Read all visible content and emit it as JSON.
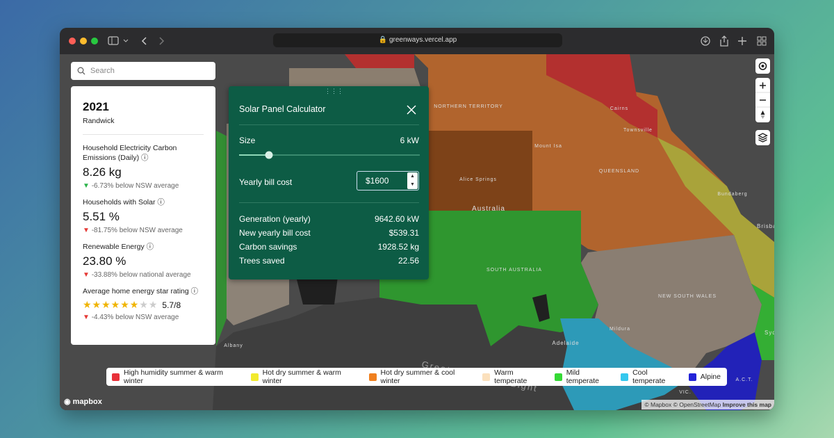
{
  "browser": {
    "url": "greenways.vercel.app"
  },
  "search": {
    "placeholder": "Search"
  },
  "info": {
    "year": "2021",
    "suburb": "Randwick",
    "metrics": [
      {
        "label": "Household Electricity Carbon Emissions (Daily)",
        "value": "8.26 kg",
        "comparison": "-6.73% below NSW average"
      },
      {
        "label": "Households with Solar",
        "value": "5.51 %",
        "comparison": "-81.75% below NSW average"
      },
      {
        "label": "Renewable Energy",
        "value": "23.80 %",
        "comparison": "-33.88% below national average"
      },
      {
        "label": "Average home energy star rating",
        "value": "5.7/8",
        "comparison": "-4.43% below NSW average"
      }
    ]
  },
  "calculator": {
    "title": "Solar Panel Calculator",
    "size_label": "Size",
    "size_value": "6 kW",
    "bill_label": "Yearly bill cost",
    "bill_value": "$1600",
    "results": [
      {
        "label": "Generation (yearly)",
        "value": "9642.60 kW"
      },
      {
        "label": "New yearly bill cost",
        "value": "$539.31"
      },
      {
        "label": "Carbon savings",
        "value": "1928.52 kg"
      },
      {
        "label": "Trees saved",
        "value": "22.56"
      }
    ]
  },
  "map": {
    "labels": [
      "NORTHERN TERRITORY",
      "Mount Isa",
      "Townsville",
      "Cairns",
      "QUEENSLAND",
      "Alice Springs",
      "Australia",
      "Bundaberg",
      "Brisba",
      "SOUTH AUSTRALIA",
      "NEW SOUTH WALES",
      "Mildura",
      "Adelaide",
      "Great Australian Bight",
      "A.C.T.",
      "Albany",
      "Syd",
      "VIC."
    ]
  },
  "legend": [
    {
      "name": "High humidity summer & warm winter",
      "color": "#e8323a"
    },
    {
      "name": "Hot dry summer & warm winter",
      "color": "#f2ea2e"
    },
    {
      "name": "Hot dry summer & cool winter",
      "color": "#f0801f"
    },
    {
      "name": "Warm temperate",
      "color": "#fbe0bd"
    },
    {
      "name": "Mild temperate",
      "color": "#35d935"
    },
    {
      "name": "Cool temperate",
      "color": "#35c8ee"
    },
    {
      "name": "Alpine",
      "color": "#2323d8"
    }
  ],
  "attribution": {
    "logo": "mapbox",
    "credits": "© Mapbox © OpenStreetMap",
    "improve": "Improve this map"
  }
}
